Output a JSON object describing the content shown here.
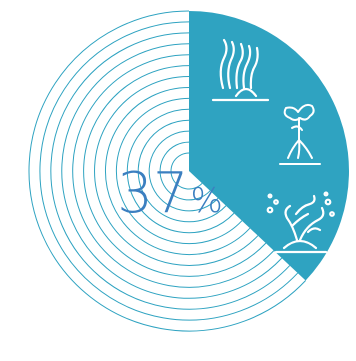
{
  "chart_data": {
    "type": "pie",
    "title": "",
    "value_label": {
      "number": "37",
      "unit": "%"
    },
    "slices": [
      {
        "value": 37,
        "color": "#2fa3c1",
        "fill": "solid"
      },
      {
        "value": 63,
        "color": "#2fa3c1",
        "fill": "concentric-rings"
      }
    ],
    "icons": [
      "seagrass-icon",
      "mangrove-icon",
      "coral-icon"
    ]
  },
  "colors": {
    "accent": "#2fa3c1",
    "number_text": "#3b7fc0",
    "background": "#ffffff"
  }
}
